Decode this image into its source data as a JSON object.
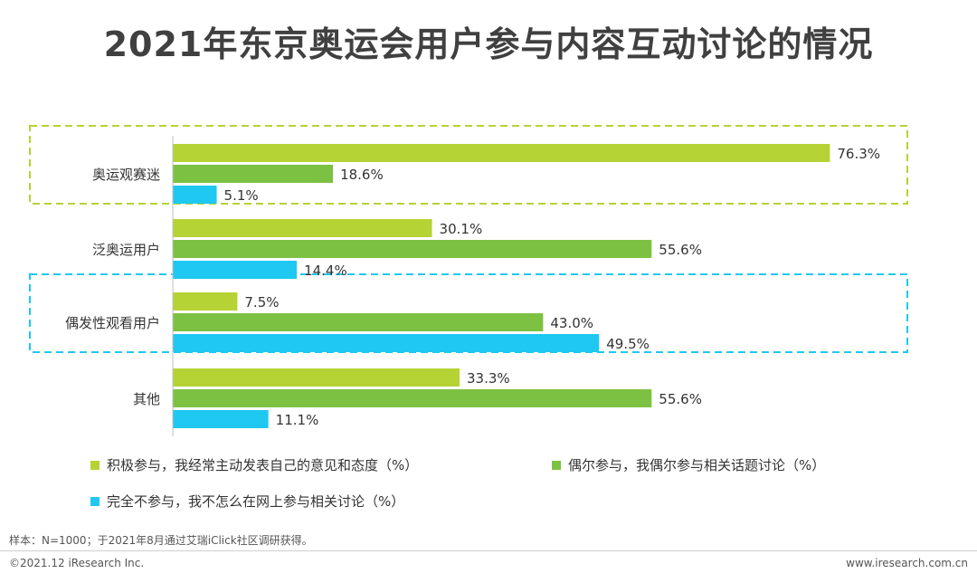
{
  "title": "2021年东京奥运会用户参与内容互动讨论的情况",
  "chart_data": {
    "type": "bar",
    "orientation": "horizontal",
    "categories": [
      "奥运观赛迷",
      "泛奥运用户",
      "偶发性观看用户",
      "其他"
    ],
    "series": [
      {
        "name": "积极参与，我经常主动发表自己的意见和态度（%）",
        "color": "#b5d334",
        "values": [
          76.3,
          30.1,
          7.5,
          33.3
        ]
      },
      {
        "name": "偶尔参与，我偶尔参与相关话题讨论（%）",
        "color": "#7dc142",
        "values": [
          18.6,
          55.6,
          43.0,
          55.6
        ]
      },
      {
        "name": "完全不参与，我不怎么在网上参与相关讨论（%）",
        "color": "#1ec8f0",
        "values": [
          5.1,
          14.4,
          49.5,
          11.1
        ]
      }
    ],
    "value_labels": [
      [
        "76.3%",
        "18.6%",
        "5.1%"
      ],
      [
        "30.1%",
        "55.6%",
        "14.4%"
      ],
      [
        "7.5%",
        "43.0%",
        "49.5%"
      ],
      [
        "33.3%",
        "55.6%",
        "11.1%"
      ]
    ],
    "xlim": [
      0,
      100
    ],
    "grid": false,
    "legend_position": "bottom",
    "highlights": [
      {
        "category": "奥运观赛迷",
        "color": "#b5d334"
      },
      {
        "category": "偶发性观看用户",
        "color": "#1ec8f0"
      }
    ]
  },
  "legend": {
    "items": [
      {
        "label": "积极参与，我经常主动发表自己的意见和态度（%）",
        "color": "#b5d334"
      },
      {
        "label": "偶尔参与，我偶尔参与相关话题讨论（%）",
        "color": "#7dc142"
      },
      {
        "label": "完全不参与，我不怎么在网上参与相关讨论（%）",
        "color": "#1ec8f0"
      }
    ]
  },
  "note": "样本：N=1000；于2021年8月通过艾瑞iClick社区调研获得。",
  "footer": {
    "left": "©2021.12 iResearch Inc.",
    "right": "www.iresearch.com.cn"
  }
}
